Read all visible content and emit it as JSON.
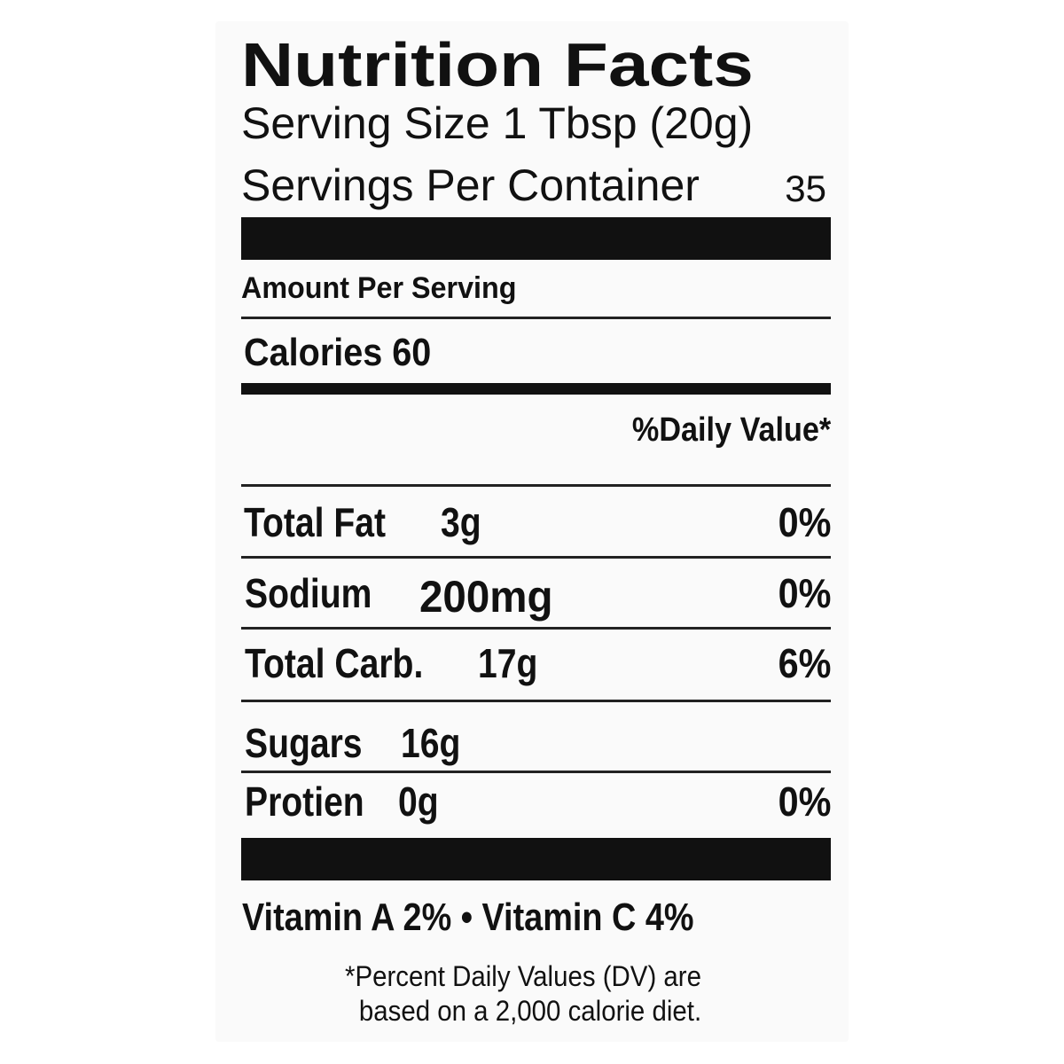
{
  "label": {
    "title": "Nutrition Facts",
    "serving_size": "Serving Size 1 Tbsp (20g)",
    "servings_per_container_label": "Servings Per Container",
    "servings_per_container": "35",
    "amount_per_serving": "Amount Per Serving",
    "calories": "Calories 60",
    "daily_value_header": "%Daily Value*",
    "rows": [
      {
        "name": "Total Fat",
        "amount": "3g",
        "dv": "0%"
      },
      {
        "name": "Sodium",
        "amount": "200mg",
        "dv": "0%"
      },
      {
        "name": "Total Carb.",
        "amount": "17g",
        "dv": "6%"
      },
      {
        "name": "Sugars",
        "amount": "16g",
        "dv": ""
      },
      {
        "name": "Protien",
        "amount": "0g",
        "dv": "0%"
      }
    ],
    "vitamins": "Vitamin A 2% • Vitamin C 4%",
    "footnote_line1": "*Percent Daily Values (DV) are",
    "footnote_line2": "based on a 2,000 calorie diet."
  }
}
